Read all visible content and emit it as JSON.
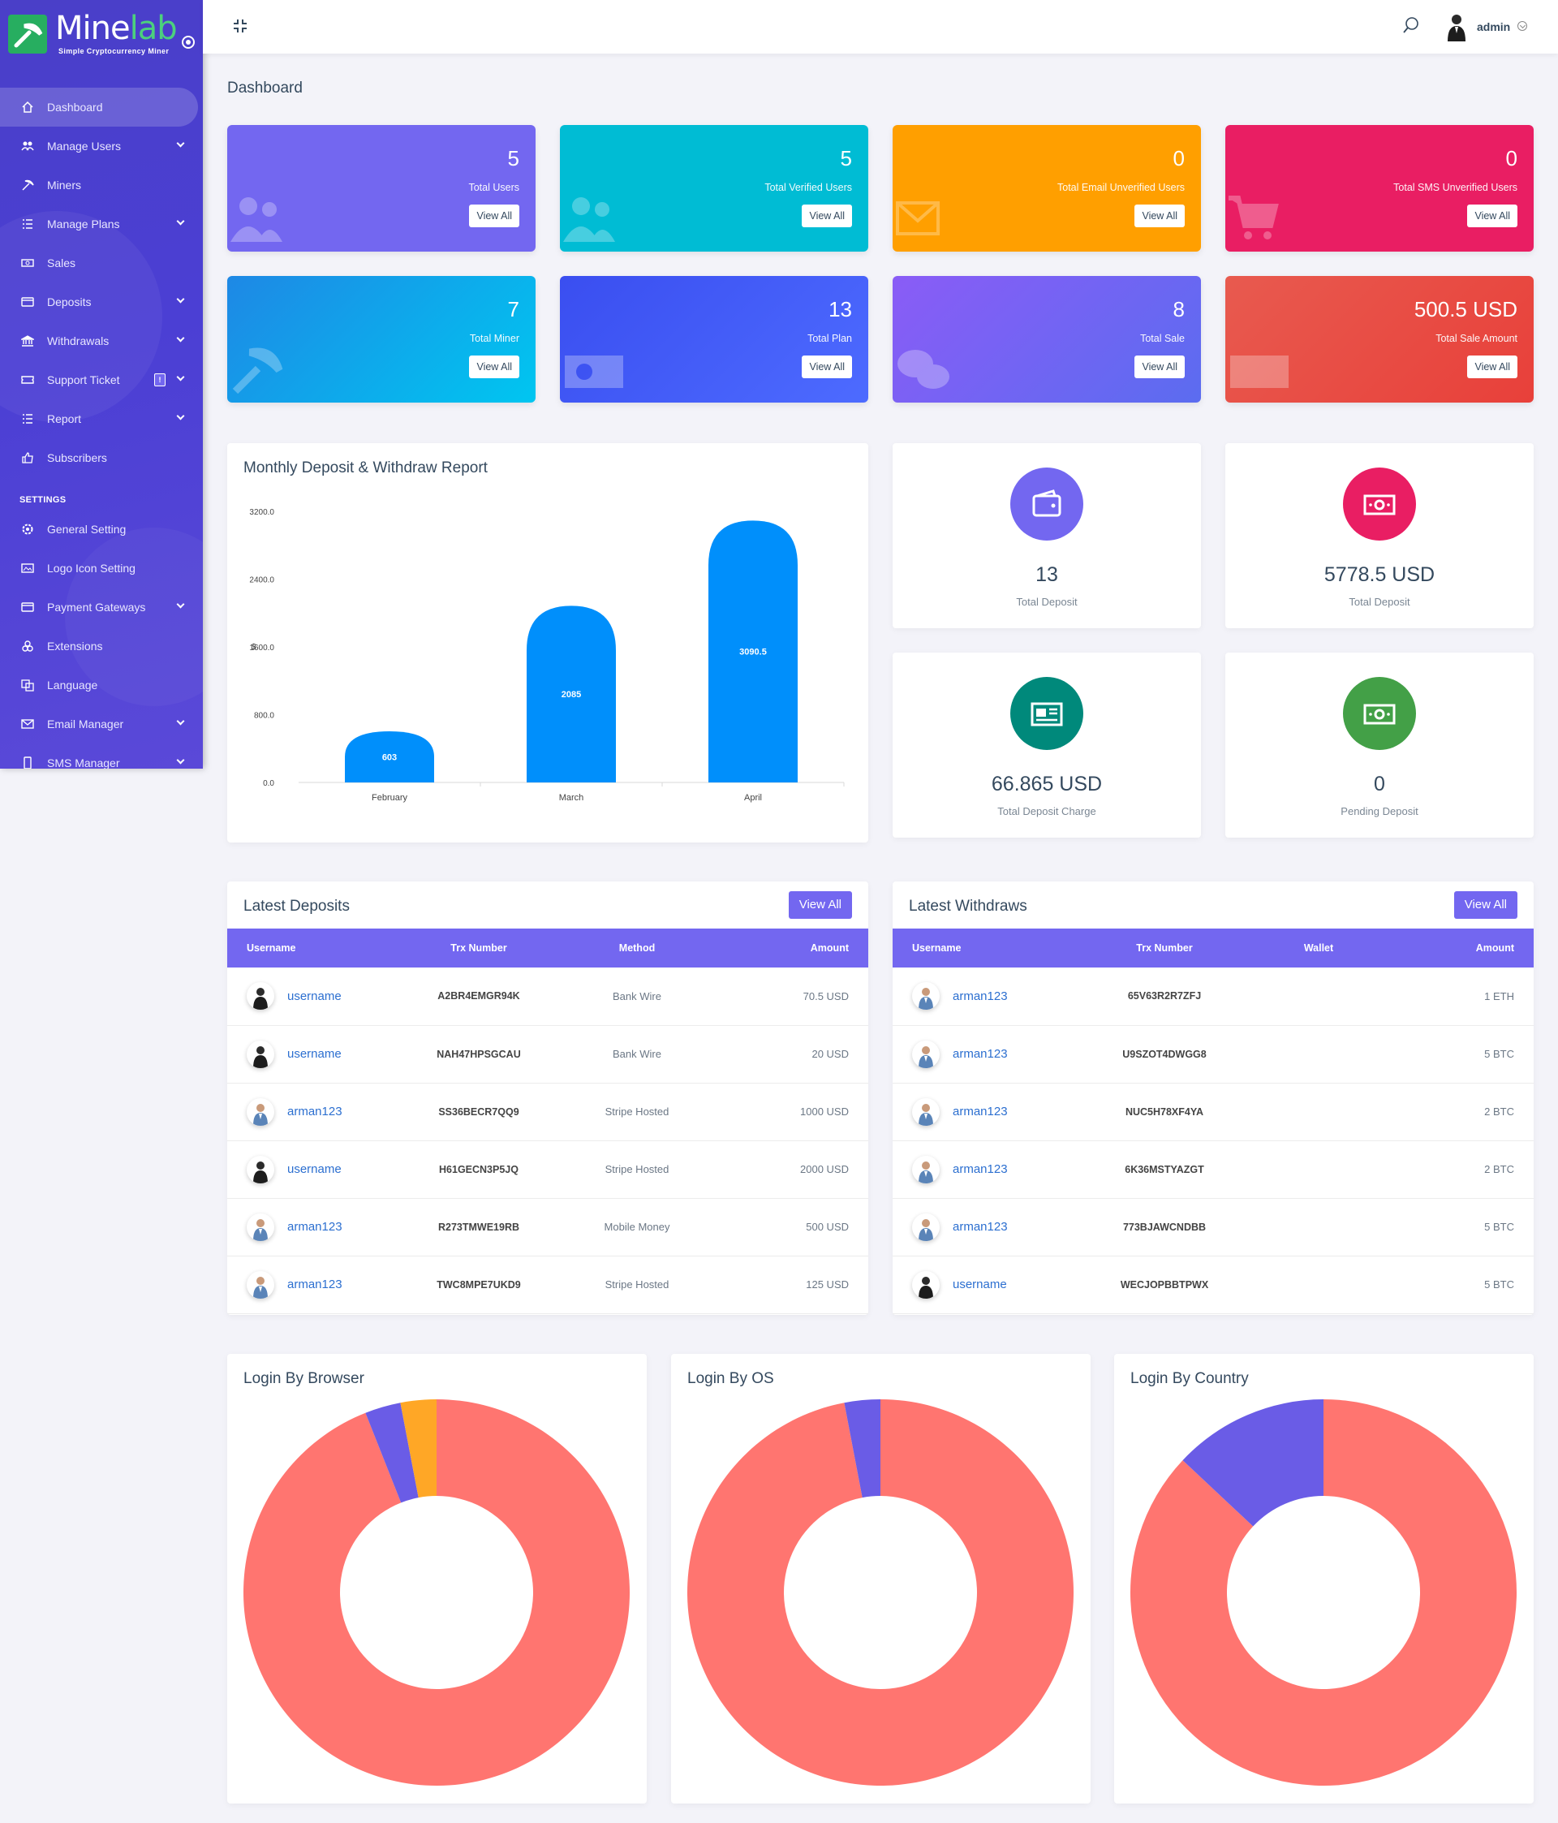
{
  "brand": {
    "name_part1": "Mine",
    "name_part2": "lab",
    "tagline": "Simple Cryptocurrency Miner"
  },
  "sidebar": {
    "items": [
      {
        "label": "Dashboard",
        "icon": "home-icon",
        "active": true,
        "has_submenu": false
      },
      {
        "label": "Manage Users",
        "icon": "users-icon",
        "has_submenu": true
      },
      {
        "label": "Miners",
        "icon": "pickaxe-icon",
        "has_submenu": false
      },
      {
        "label": "Manage Plans",
        "icon": "list-icon",
        "has_submenu": true
      },
      {
        "label": "Sales",
        "icon": "money-icon",
        "has_submenu": false
      },
      {
        "label": "Deposits",
        "icon": "credit-card-icon",
        "has_submenu": true
      },
      {
        "label": "Withdrawals",
        "icon": "bank-icon",
        "has_submenu": true
      },
      {
        "label": "Support Ticket",
        "icon": "ticket-icon",
        "has_submenu": true,
        "badge": "!"
      },
      {
        "label": "Report",
        "icon": "list-icon",
        "has_submenu": true
      },
      {
        "label": "Subscribers",
        "icon": "thumbs-up-icon",
        "has_submenu": false
      }
    ],
    "settings_heading": "SETTINGS",
    "settings_items": [
      {
        "label": "General Setting",
        "icon": "gear-icon",
        "has_submenu": false
      },
      {
        "label": "Logo Icon Setting",
        "icon": "image-icon",
        "has_submenu": false
      },
      {
        "label": "Payment Gateways",
        "icon": "credit-card-icon",
        "has_submenu": true
      },
      {
        "label": "Extensions",
        "icon": "cogs-icon",
        "has_submenu": false
      },
      {
        "label": "Language",
        "icon": "language-icon",
        "has_submenu": false
      },
      {
        "label": "Email Manager",
        "icon": "envelope-icon",
        "has_submenu": true
      },
      {
        "label": "SMS Manager",
        "icon": "mobile-icon",
        "has_submenu": true
      }
    ]
  },
  "topbar": {
    "user_name": "admin"
  },
  "page_title": "Dashboard",
  "stat_cards": [
    {
      "value": "5",
      "label": "Total Users",
      "button": "View All",
      "color": "#7367f0"
    },
    {
      "value": "5",
      "label": "Total Verified Users",
      "button": "View All",
      "color": "#00bcd4"
    },
    {
      "value": "0",
      "label": "Total Email Unverified Users",
      "button": "View All",
      "color": "#ff9800"
    },
    {
      "value": "0",
      "label": "Total SMS Unverified Users",
      "button": "View All",
      "color": "#e91e63"
    },
    {
      "value": "7",
      "label": "Total Miner",
      "button": "View All",
      "color": "#1aa3e8"
    },
    {
      "value": "13",
      "label": "Total Plan",
      "button": "View All",
      "color": "#3d5af1"
    },
    {
      "value": "8",
      "label": "Total Sale",
      "button": "View All",
      "color": "#8b5cf6"
    },
    {
      "value": "500.5 USD",
      "label": "Total Sale Amount",
      "button": "View All",
      "color": "#e8453c"
    }
  ],
  "deposit_report": {
    "title": "Monthly Deposit & Withdraw Report"
  },
  "chart_data": {
    "type": "bar",
    "categories": [
      "February",
      "March",
      "April"
    ],
    "values": [
      603,
      2085,
      3090.5
    ],
    "data_labels": [
      "603",
      "2085",
      "3090.5"
    ],
    "y_ticks": [
      "0.0",
      "800.0",
      "1600.0",
      "2400.0",
      "3200.0"
    ],
    "ylabel": "$",
    "ylim": [
      0,
      3200
    ],
    "bar_color": "#008ffb"
  },
  "widgets": [
    {
      "value": "13",
      "label": "Total Deposit",
      "icon": "wallet-icon",
      "color": "#7367f0"
    },
    {
      "value": "5778.5 USD",
      "label": "Total Deposit",
      "icon": "money-bill-icon",
      "color": "#e91e63"
    },
    {
      "value": "66.865 USD",
      "label": "Total Deposit Charge",
      "icon": "money-check-icon",
      "color": "#00897b"
    },
    {
      "value": "0",
      "label": "Pending Deposit",
      "icon": "money-bill-icon",
      "color": "#43a047"
    }
  ],
  "latest_deposits": {
    "title": "Latest Deposits",
    "button": "View All",
    "columns": [
      "Username",
      "Trx Number",
      "Method",
      "Amount"
    ],
    "rows": [
      {
        "user": "username",
        "trx": "A2BR4EMGR94K",
        "method": "Bank Wire",
        "amount": "70.5 USD",
        "avatar": "dark"
      },
      {
        "user": "username",
        "trx": "NAH47HPSGCAU",
        "method": "Bank Wire",
        "amount": "20 USD",
        "avatar": "dark"
      },
      {
        "user": "arman123",
        "trx": "SS36BECR7QQ9",
        "method": "Stripe Hosted",
        "amount": "1000 USD",
        "avatar": "light"
      },
      {
        "user": "username",
        "trx": "H61GECN3P5JQ",
        "method": "Stripe Hosted",
        "amount": "2000 USD",
        "avatar": "dark"
      },
      {
        "user": "arman123",
        "trx": "R273TMWE19RB",
        "method": "Mobile Money",
        "amount": "500 USD",
        "avatar": "light"
      },
      {
        "user": "arman123",
        "trx": "TWC8MPE7UKD9",
        "method": "Stripe Hosted",
        "amount": "125 USD",
        "avatar": "light"
      }
    ]
  },
  "latest_withdraws": {
    "title": "Latest Withdraws",
    "button": "View All",
    "columns": [
      "Username",
      "Trx Number",
      "Wallet",
      "Amount"
    ],
    "rows": [
      {
        "user": "arman123",
        "trx": "65V63R2R7ZFJ",
        "wallet": "",
        "amount": "1 ETH",
        "avatar": "light"
      },
      {
        "user": "arman123",
        "trx": "U9SZOT4DWGG8",
        "wallet": "",
        "amount": "5 BTC",
        "avatar": "light"
      },
      {
        "user": "arman123",
        "trx": "NUC5H78XF4YA",
        "wallet": "",
        "amount": "2 BTC",
        "avatar": "light"
      },
      {
        "user": "arman123",
        "trx": "6K36MSTYAZGT",
        "wallet": "",
        "amount": "2 BTC",
        "avatar": "light"
      },
      {
        "user": "arman123",
        "trx": "773BJAWCNDBB",
        "wallet": "",
        "amount": "5 BTC",
        "avatar": "light"
      },
      {
        "user": "username",
        "trx": "WECJOPBBTPWX",
        "wallet": "",
        "amount": "5 BTC",
        "avatar": "dark"
      }
    ]
  },
  "login_charts": [
    {
      "title": "Login By Browser",
      "type": "donut",
      "slices": [
        {
          "value": 94,
          "color": "#ff7570"
        },
        {
          "value": 3,
          "color": "#6a5ce6"
        },
        {
          "value": 3,
          "color": "#ffa726"
        }
      ]
    },
    {
      "title": "Login By OS",
      "type": "donut",
      "slices": [
        {
          "value": 97,
          "color": "#ff7570"
        },
        {
          "value": 3,
          "color": "#6a5ce6"
        }
      ]
    },
    {
      "title": "Login By Country",
      "type": "donut",
      "slices": [
        {
          "value": 87,
          "color": "#ff7570"
        },
        {
          "value": 13,
          "color": "#6a5ce6"
        }
      ]
    }
  ]
}
